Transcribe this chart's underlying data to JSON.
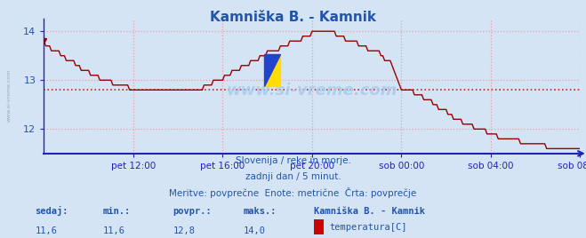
{
  "title": "Kamniška B. - Kamnik",
  "bg_color": "#d4e4f4",
  "plot_bg_color": "#d4e4f4",
  "line_color": "#990000",
  "avg_line_color": "#cc2222",
  "axis_color": "#2222bb",
  "text_color": "#2255aa",
  "grid_color": "#f0a0a0",
  "ylim": [
    11.5,
    14.25
  ],
  "yticks": [
    12,
    13,
    14
  ],
  "xlim": [
    0,
    288
  ],
  "xtick_positions": [
    48,
    96,
    144,
    192,
    240,
    288
  ],
  "xlabel_ticks": [
    "pet 12:00",
    "pet 16:00",
    "pet 20:00",
    "sob 00:00",
    "sob 04:00",
    "sob 08:00"
  ],
  "avg_value": 12.8,
  "footer_line1": "Slovenija / reke in morje.",
  "footer_line2": "zadnji dan / 5 minut.",
  "footer_line3": "Meritve: povprečne  Enote: metrične  Črta: povprečje",
  "stat_labels": [
    "sedaj:",
    "min.:",
    "povpr.:",
    "maks.:"
  ],
  "stat_values": [
    "11,6",
    "11,6",
    "12,8",
    "14,0"
  ],
  "legend_title": "Kamniška B. - Kamnik",
  "legend_label": "temperatura[C]",
  "legend_color": "#cc0000",
  "keypoints_x": [
    0,
    6,
    12,
    18,
    24,
    30,
    36,
    42,
    48,
    54,
    60,
    72,
    84,
    96,
    108,
    120,
    132,
    138,
    144,
    150,
    156,
    162,
    168,
    174,
    180,
    186,
    192,
    198,
    204,
    210,
    216,
    222,
    228,
    234,
    240,
    246,
    252,
    258,
    264,
    270,
    276,
    282,
    288
  ],
  "keypoints_y": [
    13.75,
    13.6,
    13.45,
    13.3,
    13.15,
    13.05,
    12.95,
    12.9,
    12.82,
    12.8,
    12.8,
    12.8,
    12.82,
    13.05,
    13.3,
    13.55,
    13.75,
    13.85,
    13.95,
    14.0,
    13.95,
    13.85,
    13.75,
    13.65,
    13.55,
    13.35,
    12.85,
    12.75,
    12.65,
    12.5,
    12.35,
    12.2,
    12.1,
    12.0,
    11.9,
    11.82,
    11.78,
    11.72,
    11.68,
    11.65,
    11.62,
    11.6,
    11.6
  ]
}
